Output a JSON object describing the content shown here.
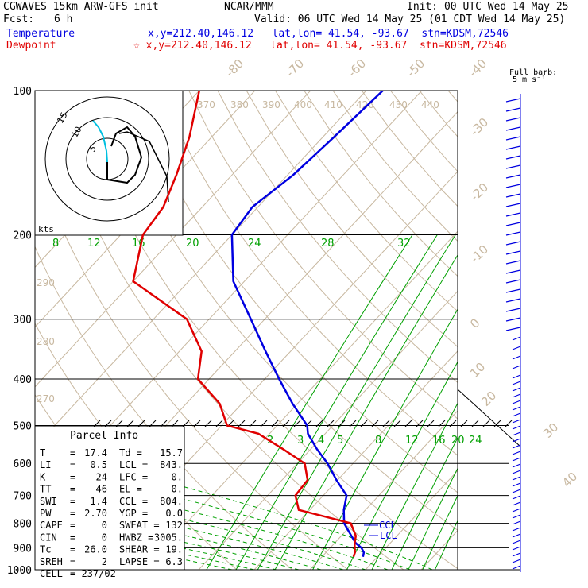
{
  "header": {
    "model": "CGWAVES 15km ARW-GFS init",
    "org": "NCAR/MMM",
    "init": "Init: 00 UTC Wed 14 May 25",
    "fcst_label": "Fcst:",
    "fcst_value": "6 h",
    "valid": "Valid: 06 UTC Wed 14 May 25 (01 CDT Wed 14 May 25)",
    "temp_label": "Temperature",
    "temp_loc": "x,y=212.40,146.12   lat,lon= 41.54, -93.67  stn=KDSM,72546",
    "dew_label": "Dewpoint",
    "dew_loc": "☆ x,y=212.40,146.12   lat,lon= 41.54, -93.67  stn=KDSM,72546"
  },
  "barb_legend": {
    "line1": "Full barb:",
    "line2": "5 m s⁻¹"
  },
  "hodograph": {
    "units": "kts",
    "rings": [
      "5",
      "10",
      "15"
    ]
  },
  "parcel": {
    "title": "Parcel Info",
    "rows": [
      {
        "l": "T",
        "lv": "17.4",
        "r": "Td",
        "rv": "15.7"
      },
      {
        "l": "LI",
        "lv": "0.5",
        "r": "LCL",
        "rv": "843."
      },
      {
        "l": "K",
        "lv": "24",
        "r": "LFC",
        "rv": "0."
      },
      {
        "l": "TT",
        "lv": "46",
        "r": "EL",
        "rv": "0."
      },
      {
        "l": "SWI",
        "lv": "1.4",
        "r": "CCL",
        "rv": "804."
      },
      {
        "l": "PW",
        "lv": "2.70",
        "r": "YGP",
        "rv": "0.0"
      },
      {
        "l": "CAPE",
        "lv": "0",
        "r": "SWEAT",
        "rv": "132"
      },
      {
        "l": "CIN",
        "lv": "0",
        "r": "HWBZ",
        "rv": "3005."
      },
      {
        "l": "Tc",
        "lv": "26.0",
        "r": "SHEAR",
        "rv": "19."
      },
      {
        "l": "SREH",
        "lv": "2",
        "r": "LAPSE",
        "rv": "6.3"
      },
      {
        "l": "CELL",
        "lv": "237/02",
        "r": "",
        "rv": ""
      }
    ]
  },
  "levels": {
    "ccl": "CCL",
    "lcl": "LCL"
  },
  "colors": {
    "temperature": "#0000e0",
    "dewpoint": "#e00000",
    "isotherm": "#c8b8a0",
    "mixing": "#00a000",
    "hodo": "#00c0e0"
  },
  "chart_data": {
    "type": "line",
    "pressure_ticks": [
      "100",
      "200",
      "300",
      "400",
      "500",
      "600",
      "700",
      "800",
      "900",
      "1000"
    ],
    "isotherm_labels": [
      "-80",
      "-70",
      "-60",
      "-50",
      "-40",
      "-30",
      "-20",
      "-10",
      "0",
      "10",
      "20",
      "30",
      "40"
    ],
    "theta_labels": [
      "370",
      "380",
      "390",
      "400",
      "410",
      "420",
      "430",
      "440",
      "290",
      "280",
      "270"
    ],
    "mixing_labels_upper": [
      "8",
      "12",
      "16",
      "20",
      "24",
      "28",
      "32"
    ],
    "mixing_labels_lower": [
      "2",
      "3",
      "4",
      "5",
      "8",
      "12",
      "16",
      "20",
      "24"
    ],
    "series": [
      {
        "name": "Temperature",
        "p": [
          940,
          920,
          900,
          880,
          850,
          800,
          750,
          700,
          650,
          600,
          560,
          520,
          500,
          450,
          400,
          350,
          300,
          250,
          200,
          175,
          150,
          125,
          100
        ],
        "t": [
          17.4,
          16.8,
          15.6,
          13.8,
          11.8,
          8.4,
          6.1,
          4.2,
          -0.2,
          -4.6,
          -8.9,
          -13.1,
          -14.6,
          -20.9,
          -27.4,
          -34.5,
          -42.5,
          -52,
          -60,
          -61,
          -59,
          -58,
          -57
        ]
      },
      {
        "name": "Dewpoint",
        "p": [
          940,
          920,
          900,
          880,
          850,
          800,
          750,
          700,
          650,
          600,
          560,
          520,
          500,
          450,
          400,
          350,
          300,
          250,
          200,
          175,
          150,
          125,
          100
        ],
        "t": [
          15.7,
          15.2,
          14.4,
          13.6,
          12.6,
          9.6,
          -2,
          -5,
          -5.4,
          -8.7,
          -15,
          -22,
          -29,
          -34,
          -42,
          -46,
          -54,
          -70,
          -76,
          -77,
          -80,
          -84,
          -90
        ]
      }
    ]
  }
}
